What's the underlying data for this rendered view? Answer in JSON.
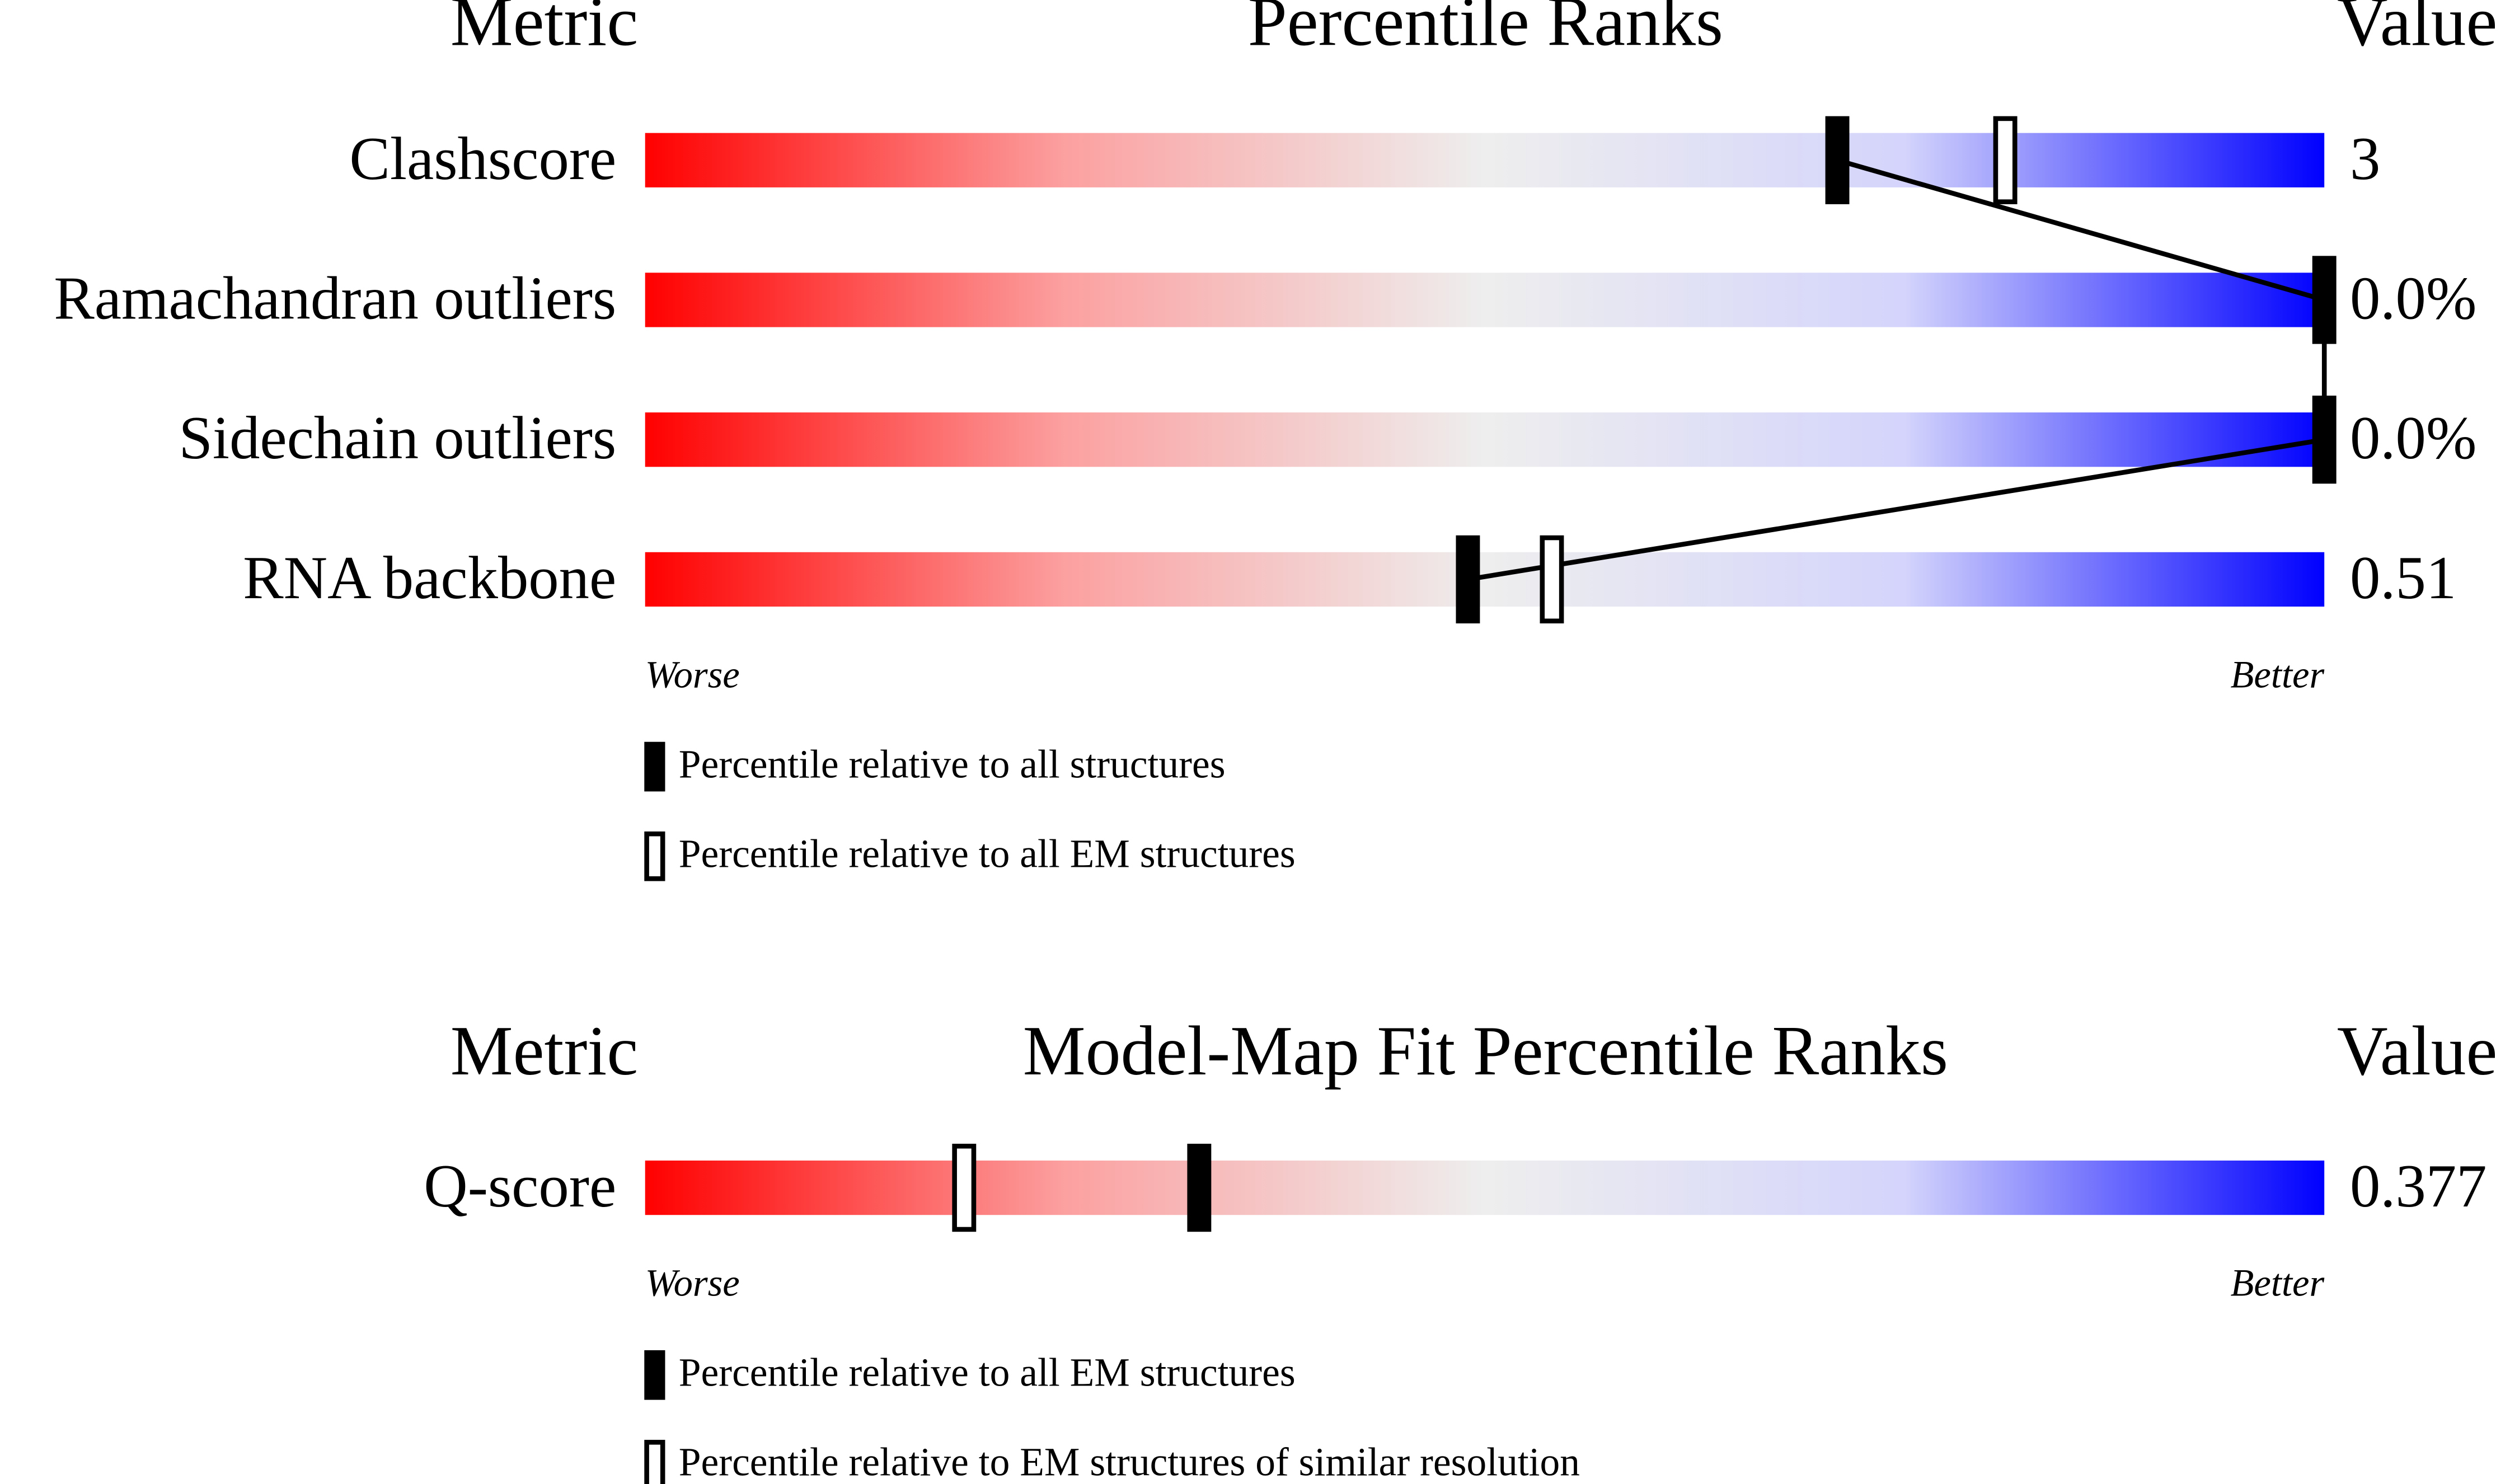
{
  "chart_data": [
    {
      "type": "slider",
      "metric_header": "Metric",
      "title": "Percentile Ranks",
      "value_header": "Value",
      "categories": [
        "Clashscore",
        "Ramachandran outliers",
        "Sidechain outliers",
        "RNA backbone"
      ],
      "metric_values": [
        "3",
        "0.0%",
        "0.0%",
        "0.51"
      ],
      "series": [
        {
          "name": "Percentile relative to all structures",
          "color": "#000000",
          "values": [
            71,
            100,
            100,
            49
          ]
        },
        {
          "name": "Percentile relative to all EM structures",
          "color": "#ffffff",
          "values": [
            81,
            null,
            null,
            54
          ]
        }
      ],
      "xlim": [
        0,
        100
      ],
      "worse_label": "Worse",
      "better_label": "Better",
      "connect_series": 0
    },
    {
      "type": "slider",
      "metric_header": "Metric",
      "title": "Model-Map Fit Percentile Ranks",
      "value_header": "Value",
      "categories": [
        "Q-score"
      ],
      "metric_values": [
        "0.377"
      ],
      "series": [
        {
          "name": "Percentile relative to all EM structures",
          "color": "#000000",
          "values": [
            33
          ]
        },
        {
          "name": "Percentile relative to EM structures of similar resolution",
          "color": "#ffffff",
          "values": [
            19
          ]
        }
      ],
      "xlim": [
        0,
        100
      ],
      "worse_label": "Worse",
      "better_label": "Better"
    }
  ]
}
